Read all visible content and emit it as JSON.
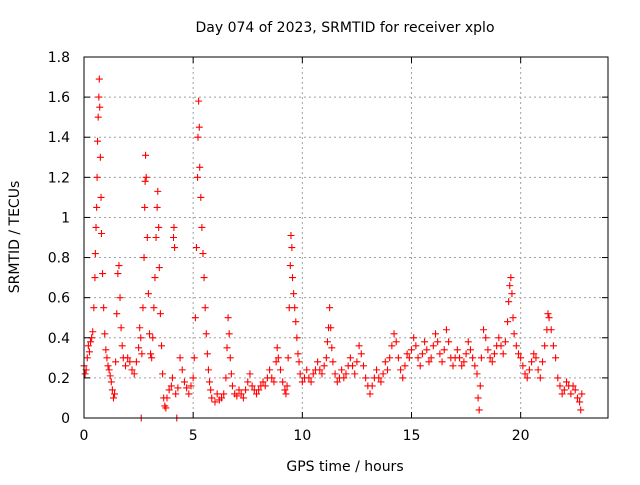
{
  "chart_data": {
    "type": "scatter",
    "title": "Day 074 of 2023, SRMTID for receiver xplo",
    "xlabel": "GPS time / hours",
    "ylabel": "SRMTID / TECUs",
    "xlim": [
      0,
      24
    ],
    "ylim": [
      0,
      1.8
    ],
    "xticks": [
      0,
      5,
      10,
      15,
      20
    ],
    "xtick_labels": [
      "0",
      "5",
      "10",
      "15",
      "20"
    ],
    "yticks": [
      0,
      0.2,
      0.4,
      0.6,
      0.8,
      1.0,
      1.2,
      1.4,
      1.6,
      1.8
    ],
    "ytick_labels": [
      "0",
      "0.2",
      "0.4",
      "0.6",
      "0.8",
      "1",
      "1.2",
      "1.4",
      "1.6",
      "1.8"
    ],
    "grid": true,
    "marker": "+",
    "color": "#ff0000",
    "series": [
      {
        "name": "SRMTID",
        "points": [
          [
            0.0,
            0.26
          ],
          [
            0.05,
            0.22
          ],
          [
            0.1,
            0.24
          ],
          [
            0.15,
            0.3
          ],
          [
            0.2,
            0.36
          ],
          [
            0.25,
            0.33
          ],
          [
            0.3,
            0.38
          ],
          [
            0.35,
            0.4
          ],
          [
            0.4,
            0.43
          ],
          [
            0.45,
            0.55
          ],
          [
            0.5,
            0.7
          ],
          [
            0.52,
            0.82
          ],
          [
            0.55,
            0.95
          ],
          [
            0.58,
            1.05
          ],
          [
            0.6,
            1.2
          ],
          [
            0.62,
            1.38
          ],
          [
            0.65,
            1.5
          ],
          [
            0.68,
            1.6
          ],
          [
            0.7,
            1.69
          ],
          [
            0.72,
            1.55
          ],
          [
            0.75,
            1.3
          ],
          [
            0.78,
            1.1
          ],
          [
            0.8,
            0.92
          ],
          [
            0.85,
            0.72
          ],
          [
            0.9,
            0.55
          ],
          [
            0.95,
            0.42
          ],
          [
            1.0,
            0.34
          ],
          [
            1.05,
            0.3
          ],
          [
            1.1,
            0.26
          ],
          [
            1.15,
            0.24
          ],
          [
            1.2,
            0.21
          ],
          [
            1.25,
            0.18
          ],
          [
            1.3,
            0.14
          ],
          [
            1.35,
            0.1
          ],
          [
            1.4,
            0.12
          ],
          [
            1.45,
            0.28
          ],
          [
            1.5,
            0.52
          ],
          [
            1.55,
            0.72
          ],
          [
            1.6,
            0.76
          ],
          [
            1.65,
            0.6
          ],
          [
            1.7,
            0.45
          ],
          [
            1.75,
            0.36
          ],
          [
            1.8,
            0.3
          ],
          [
            1.9,
            0.26
          ],
          [
            2.0,
            0.3
          ],
          [
            2.1,
            0.28
          ],
          [
            2.2,
            0.24
          ],
          [
            2.3,
            0.22
          ],
          [
            2.4,
            0.28
          ],
          [
            2.5,
            0.35
          ],
          [
            2.55,
            0.45
          ],
          [
            2.6,
            0.4
          ],
          [
            2.62,
            0.0
          ],
          [
            2.65,
            0.32
          ],
          [
            2.7,
            0.55
          ],
          [
            2.75,
            0.8
          ],
          [
            2.78,
            1.05
          ],
          [
            2.8,
            1.18
          ],
          [
            2.82,
            1.31
          ],
          [
            2.85,
            1.2
          ],
          [
            2.9,
            0.9
          ],
          [
            2.95,
            0.62
          ],
          [
            3.0,
            0.42
          ],
          [
            3.05,
            0.32
          ],
          [
            3.1,
            0.3
          ],
          [
            3.15,
            0.4
          ],
          [
            3.2,
            0.55
          ],
          [
            3.25,
            0.7
          ],
          [
            3.3,
            0.9
          ],
          [
            3.35,
            1.05
          ],
          [
            3.38,
            1.13
          ],
          [
            3.42,
            0.95
          ],
          [
            3.45,
            0.75
          ],
          [
            3.5,
            0.52
          ],
          [
            3.55,
            0.36
          ],
          [
            3.6,
            0.22
          ],
          [
            3.65,
            0.1
          ],
          [
            3.7,
            0.06
          ],
          [
            3.75,
            0.05
          ],
          [
            3.8,
            0.1
          ],
          [
            3.9,
            0.14
          ],
          [
            4.0,
            0.16
          ],
          [
            4.05,
            0.2
          ],
          [
            4.1,
            0.9
          ],
          [
            4.12,
            0.95
          ],
          [
            4.15,
            0.85
          ],
          [
            4.2,
            0.12
          ],
          [
            4.25,
            0.0
          ],
          [
            4.3,
            0.15
          ],
          [
            4.4,
            0.3
          ],
          [
            4.5,
            0.24
          ],
          [
            4.6,
            0.18
          ],
          [
            4.7,
            0.15
          ],
          [
            4.8,
            0.12
          ],
          [
            4.9,
            0.16
          ],
          [
            5.0,
            0.2
          ],
          [
            5.05,
            0.3
          ],
          [
            5.1,
            0.5
          ],
          [
            5.15,
            0.85
          ],
          [
            5.2,
            1.2
          ],
          [
            5.22,
            1.4
          ],
          [
            5.25,
            1.58
          ],
          [
            5.28,
            1.45
          ],
          [
            5.3,
            1.25
          ],
          [
            5.35,
            1.1
          ],
          [
            5.4,
            0.95
          ],
          [
            5.45,
            0.82
          ],
          [
            5.5,
            0.7
          ],
          [
            5.55,
            0.55
          ],
          [
            5.6,
            0.42
          ],
          [
            5.65,
            0.32
          ],
          [
            5.7,
            0.24
          ],
          [
            5.75,
            0.18
          ],
          [
            5.8,
            0.14
          ],
          [
            5.85,
            0.1
          ],
          [
            6.0,
            0.08
          ],
          [
            6.1,
            0.12
          ],
          [
            6.2,
            0.09
          ],
          [
            6.3,
            0.1
          ],
          [
            6.4,
            0.12
          ],
          [
            6.5,
            0.2
          ],
          [
            6.55,
            0.35
          ],
          [
            6.6,
            0.5
          ],
          [
            6.65,
            0.42
          ],
          [
            6.7,
            0.3
          ],
          [
            6.75,
            0.22
          ],
          [
            6.8,
            0.16
          ],
          [
            6.9,
            0.12
          ],
          [
            7.0,
            0.11
          ],
          [
            7.1,
            0.14
          ],
          [
            7.2,
            0.12
          ],
          [
            7.3,
            0.1
          ],
          [
            7.4,
            0.14
          ],
          [
            7.5,
            0.18
          ],
          [
            7.6,
            0.22
          ],
          [
            7.7,
            0.16
          ],
          [
            7.8,
            0.14
          ],
          [
            7.9,
            0.12
          ],
          [
            8.0,
            0.14
          ],
          [
            8.1,
            0.16
          ],
          [
            8.2,
            0.18
          ],
          [
            8.3,
            0.16
          ],
          [
            8.4,
            0.2
          ],
          [
            8.5,
            0.24
          ],
          [
            8.6,
            0.2
          ],
          [
            8.7,
            0.18
          ],
          [
            8.8,
            0.28
          ],
          [
            8.85,
            0.35
          ],
          [
            8.9,
            0.3
          ],
          [
            9.0,
            0.24
          ],
          [
            9.1,
            0.18
          ],
          [
            9.2,
            0.14
          ],
          [
            9.25,
            0.12
          ],
          [
            9.3,
            0.16
          ],
          [
            9.35,
            0.3
          ],
          [
            9.4,
            0.55
          ],
          [
            9.45,
            0.76
          ],
          [
            9.48,
            0.91
          ],
          [
            9.52,
            0.85
          ],
          [
            9.55,
            0.7
          ],
          [
            9.6,
            0.62
          ],
          [
            9.65,
            0.55
          ],
          [
            9.7,
            0.48
          ],
          [
            9.75,
            0.4
          ],
          [
            9.8,
            0.32
          ],
          [
            9.85,
            0.28
          ],
          [
            9.9,
            0.22
          ],
          [
            10.0,
            0.18
          ],
          [
            10.1,
            0.2
          ],
          [
            10.2,
            0.24
          ],
          [
            10.3,
            0.2
          ],
          [
            10.4,
            0.18
          ],
          [
            10.5,
            0.22
          ],
          [
            10.6,
            0.24
          ],
          [
            10.7,
            0.28
          ],
          [
            10.8,
            0.24
          ],
          [
            10.9,
            0.22
          ],
          [
            11.0,
            0.26
          ],
          [
            11.1,
            0.3
          ],
          [
            11.15,
            0.38
          ],
          [
            11.2,
            0.45
          ],
          [
            11.25,
            0.55
          ],
          [
            11.3,
            0.45
          ],
          [
            11.35,
            0.35
          ],
          [
            11.4,
            0.28
          ],
          [
            11.5,
            0.22
          ],
          [
            11.6,
            0.18
          ],
          [
            11.7,
            0.2
          ],
          [
            11.8,
            0.24
          ],
          [
            11.9,
            0.2
          ],
          [
            12.0,
            0.22
          ],
          [
            12.1,
            0.26
          ],
          [
            12.2,
            0.3
          ],
          [
            12.3,
            0.26
          ],
          [
            12.4,
            0.22
          ],
          [
            12.5,
            0.28
          ],
          [
            12.6,
            0.36
          ],
          [
            12.7,
            0.32
          ],
          [
            12.8,
            0.26
          ],
          [
            12.9,
            0.2
          ],
          [
            13.0,
            0.16
          ],
          [
            13.1,
            0.12
          ],
          [
            13.2,
            0.16
          ],
          [
            13.3,
            0.2
          ],
          [
            13.4,
            0.24
          ],
          [
            13.5,
            0.2
          ],
          [
            13.6,
            0.18
          ],
          [
            13.7,
            0.22
          ],
          [
            13.8,
            0.28
          ],
          [
            13.9,
            0.24
          ],
          [
            14.0,
            0.3
          ],
          [
            14.1,
            0.36
          ],
          [
            14.2,
            0.42
          ],
          [
            14.3,
            0.38
          ],
          [
            14.4,
            0.3
          ],
          [
            14.5,
            0.24
          ],
          [
            14.6,
            0.2
          ],
          [
            14.7,
            0.26
          ],
          [
            14.8,
            0.32
          ],
          [
            14.9,
            0.3
          ],
          [
            15.0,
            0.34
          ],
          [
            15.1,
            0.4
          ],
          [
            15.2,
            0.36
          ],
          [
            15.3,
            0.3
          ],
          [
            15.4,
            0.26
          ],
          [
            15.5,
            0.32
          ],
          [
            15.6,
            0.38
          ],
          [
            15.7,
            0.34
          ],
          [
            15.8,
            0.28
          ],
          [
            15.9,
            0.3
          ],
          [
            16.0,
            0.36
          ],
          [
            16.1,
            0.42
          ],
          [
            16.2,
            0.38
          ],
          [
            16.3,
            0.32
          ],
          [
            16.4,
            0.28
          ],
          [
            16.5,
            0.34
          ],
          [
            16.6,
            0.44
          ],
          [
            16.7,
            0.38
          ],
          [
            16.8,
            0.3
          ],
          [
            16.9,
            0.26
          ],
          [
            17.0,
            0.3
          ],
          [
            17.1,
            0.34
          ],
          [
            17.2,
            0.3
          ],
          [
            17.3,
            0.26
          ],
          [
            17.4,
            0.28
          ],
          [
            17.5,
            0.32
          ],
          [
            17.6,
            0.38
          ],
          [
            17.7,
            0.34
          ],
          [
            17.8,
            0.3
          ],
          [
            17.9,
            0.26
          ],
          [
            18.0,
            0.22
          ],
          [
            18.05,
            0.1
          ],
          [
            18.1,
            0.04
          ],
          [
            18.15,
            0.16
          ],
          [
            18.2,
            0.3
          ],
          [
            18.3,
            0.44
          ],
          [
            18.4,
            0.4
          ],
          [
            18.5,
            0.34
          ],
          [
            18.6,
            0.3
          ],
          [
            18.7,
            0.28
          ],
          [
            18.8,
            0.32
          ],
          [
            18.9,
            0.36
          ],
          [
            19.0,
            0.4
          ],
          [
            19.1,
            0.36
          ],
          [
            19.2,
            0.32
          ],
          [
            19.3,
            0.38
          ],
          [
            19.4,
            0.48
          ],
          [
            19.45,
            0.58
          ],
          [
            19.5,
            0.66
          ],
          [
            19.55,
            0.7
          ],
          [
            19.6,
            0.62
          ],
          [
            19.65,
            0.5
          ],
          [
            19.7,
            0.42
          ],
          [
            19.8,
            0.36
          ],
          [
            19.9,
            0.32
          ],
          [
            20.0,
            0.3
          ],
          [
            20.1,
            0.26
          ],
          [
            20.2,
            0.22
          ],
          [
            20.3,
            0.2
          ],
          [
            20.4,
            0.24
          ],
          [
            20.5,
            0.28
          ],
          [
            20.6,
            0.32
          ],
          [
            20.7,
            0.3
          ],
          [
            20.8,
            0.24
          ],
          [
            20.9,
            0.2
          ],
          [
            21.0,
            0.28
          ],
          [
            21.1,
            0.36
          ],
          [
            21.2,
            0.44
          ],
          [
            21.25,
            0.52
          ],
          [
            21.3,
            0.5
          ],
          [
            21.4,
            0.44
          ],
          [
            21.5,
            0.36
          ],
          [
            21.6,
            0.3
          ],
          [
            21.7,
            0.2
          ],
          [
            21.8,
            0.16
          ],
          [
            21.9,
            0.12
          ],
          [
            22.0,
            0.14
          ],
          [
            22.1,
            0.18
          ],
          [
            22.2,
            0.16
          ],
          [
            22.3,
            0.12
          ],
          [
            22.4,
            0.16
          ],
          [
            22.5,
            0.14
          ],
          [
            22.6,
            0.1
          ],
          [
            22.7,
            0.08
          ],
          [
            22.75,
            0.04
          ],
          [
            22.8,
            0.12
          ]
        ]
      }
    ]
  }
}
